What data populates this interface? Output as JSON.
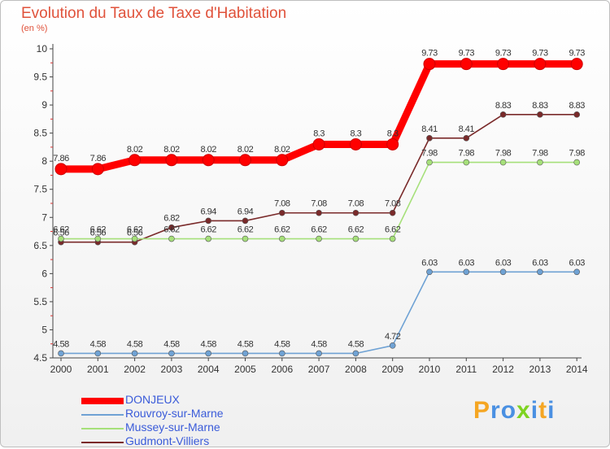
{
  "header": {
    "title": "Evolution du Taux de Taxe d'Habitation",
    "subtitle": "(en %)"
  },
  "chart_data": {
    "type": "line",
    "title": "Evolution du Taux de Taxe d'Habitation",
    "ylabel": "(en %)",
    "xlabel": "",
    "x": [
      2000,
      2001,
      2002,
      2003,
      2004,
      2005,
      2006,
      2007,
      2008,
      2009,
      2010,
      2011,
      2012,
      2013,
      2014
    ],
    "ylim": [
      4.5,
      10
    ],
    "yticks": [
      "4.5",
      "5",
      "5.5",
      "6",
      "6.5",
      "7",
      "7.5",
      "8",
      "8.5",
      "9",
      "9.5",
      "10"
    ],
    "grid": false,
    "legend": "bottom-left",
    "series": [
      {
        "name": "DONJEUX",
        "color": "#ff0000",
        "values": [
          7.86,
          7.86,
          8.02,
          8.02,
          8.02,
          8.02,
          8.02,
          8.3,
          8.3,
          8.3,
          9.73,
          9.73,
          9.73,
          9.73,
          9.73
        ],
        "labels": [
          "7.86",
          "7.86",
          "8.02",
          "8.02",
          "8.02",
          "8.02",
          "8.02",
          "8.3",
          "8.3",
          "8.3",
          "9.73",
          "9.73",
          "9.73",
          "9.73",
          "9.73"
        ]
      },
      {
        "name": "Rouvroy-sur-Marne",
        "color": "#6fa2d4",
        "values": [
          4.58,
          4.58,
          4.58,
          4.58,
          4.58,
          4.58,
          4.58,
          4.58,
          4.58,
          4.72,
          6.03,
          6.03,
          6.03,
          6.03,
          6.03
        ],
        "labels": [
          "4.58",
          "4.58",
          "4.58",
          "4.58",
          "4.58",
          "4.58",
          "4.58",
          "4.58",
          "4.58",
          "4.72",
          "6.03",
          "6.03",
          "6.03",
          "6.03",
          "6.03"
        ]
      },
      {
        "name": "Mussey-sur-Marne",
        "color": "#a6e07a",
        "values": [
          6.62,
          6.62,
          6.62,
          6.62,
          6.62,
          6.62,
          6.62,
          6.62,
          6.62,
          6.62,
          7.98,
          7.98,
          7.98,
          7.98,
          7.98
        ],
        "labels": [
          "6.62",
          "6.62",
          "6.62",
          "6.62",
          "6.62",
          "6.62",
          "6.62",
          "6.62",
          "6.62",
          "6.62",
          "7.98",
          "7.98",
          "7.98",
          "7.98",
          "7.98"
        ]
      },
      {
        "name": "Gudmont-Villiers",
        "color": "#7a2a2a",
        "values": [
          6.56,
          6.56,
          6.56,
          6.82,
          6.94,
          6.94,
          7.08,
          7.08,
          7.08,
          7.08,
          8.41,
          8.41,
          8.83,
          8.83,
          8.83
        ],
        "labels": [
          "6.56",
          "6.56",
          "6.56",
          "6.82",
          "6.94",
          "6.94",
          "7.08",
          "7.08",
          "7.08",
          "7.08",
          "8.41",
          "8.41",
          "8.83",
          "8.83",
          "8.83"
        ]
      }
    ]
  },
  "branding": {
    "logo_letters": [
      "P",
      "r",
      "o",
      "x",
      "i",
      "t",
      "i"
    ],
    "logo_colors": [
      "#f5a623",
      "#4a90e2",
      "#4a90e2",
      "#7ed321",
      "#4a90e2",
      "#f5a623",
      "#4a90e2"
    ]
  }
}
